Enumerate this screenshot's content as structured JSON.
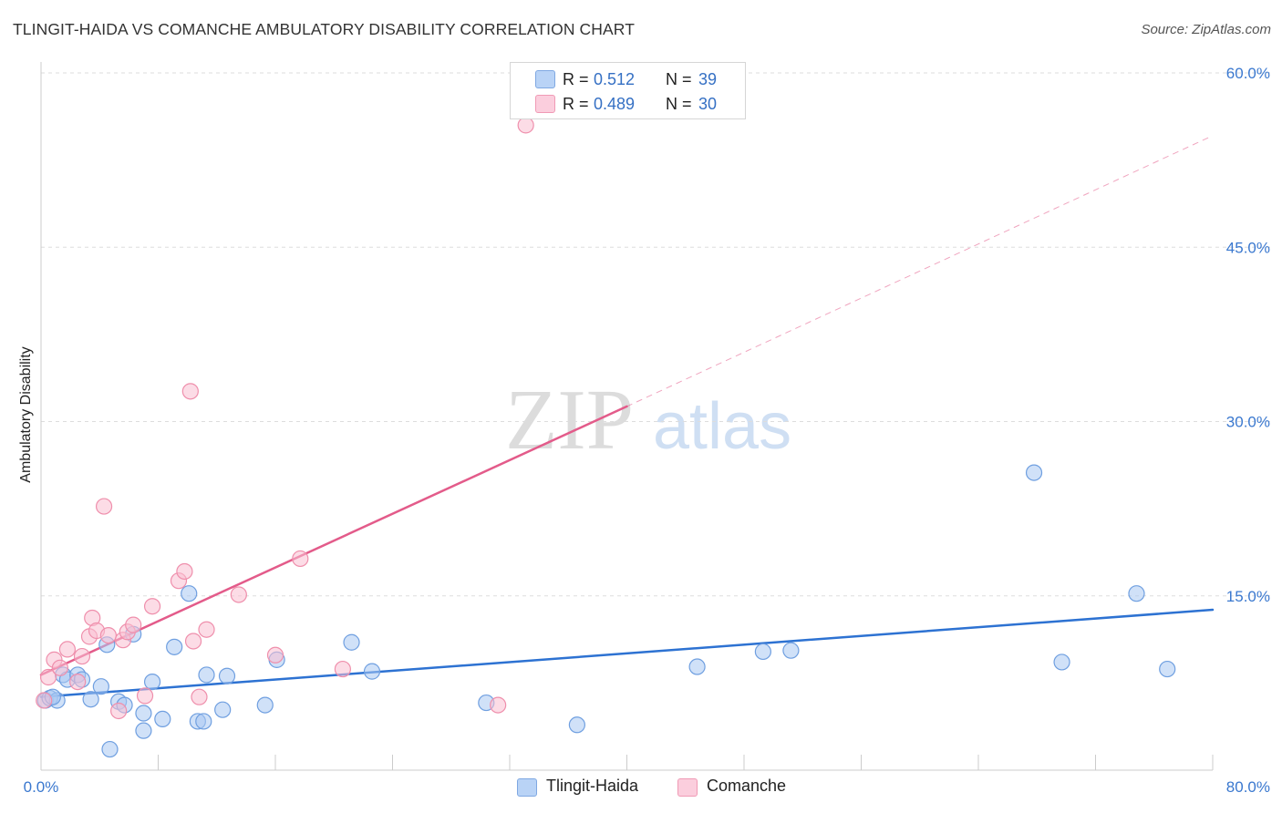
{
  "header": {
    "title": "TLINGIT-HAIDA VS COMANCHE AMBULATORY DISABILITY CORRELATION CHART",
    "source": "Source: ZipAtlas.com"
  },
  "watermark": {
    "zip": "ZIP",
    "atlas": "atlas"
  },
  "legend": {
    "r_label": "R =",
    "n_label": "N =",
    "entries": [
      {
        "r": "0.512",
        "n": "39"
      },
      {
        "r": "0.489",
        "n": "30"
      }
    ]
  },
  "colors": {
    "tlingit_fill": "#a9c8f3",
    "tlingit_stroke": "#6f9fe0",
    "tlingit_line": "#2d72d2",
    "comanche_fill": "#f9c0d2",
    "comanche_stroke": "#ef8fac",
    "comanche_line": "#e35b8a",
    "tick_label": "#3a78cf",
    "grid": "#dddddd"
  },
  "chart_data": {
    "type": "scatter",
    "title": "TLINGIT-HAIDA VS COMANCHE AMBULATORY DISABILITY CORRELATION CHART",
    "xlabel": "",
    "ylabel": "Ambulatory Disability",
    "xlim": [
      0,
      80
    ],
    "ylim": [
      0,
      60
    ],
    "x_tick_labels": [
      "0.0%",
      "80.0%"
    ],
    "y_ticks": [
      15,
      30,
      45,
      60
    ],
    "y_tick_labels": [
      "15.0%",
      "30.0%",
      "45.0%",
      "60.0%"
    ],
    "grid": "horizontal dashed",
    "legend_position": "top-center",
    "series": [
      {
        "name": "Tlingit-Haida",
        "color": "#a9c8f3",
        "points": [
          [
            0.3,
            6.0
          ],
          [
            0.6,
            6.2
          ],
          [
            1.1,
            6.0
          ],
          [
            1.5,
            8.2
          ],
          [
            1.8,
            7.8
          ],
          [
            2.5,
            8.2
          ],
          [
            2.8,
            7.8
          ],
          [
            3.4,
            6.1
          ],
          [
            4.1,
            7.2
          ],
          [
            4.5,
            10.8
          ],
          [
            4.7,
            1.8
          ],
          [
            5.3,
            5.9
          ],
          [
            5.7,
            5.6
          ],
          [
            6.3,
            11.7
          ],
          [
            7.0,
            4.9
          ],
          [
            7.0,
            3.4
          ],
          [
            7.6,
            7.6
          ],
          [
            8.3,
            4.4
          ],
          [
            9.1,
            10.6
          ],
          [
            10.1,
            15.2
          ],
          [
            10.7,
            4.2
          ],
          [
            11.1,
            4.2
          ],
          [
            11.3,
            8.2
          ],
          [
            12.4,
            5.2
          ],
          [
            12.7,
            8.1
          ],
          [
            15.3,
            5.6
          ],
          [
            16.1,
            9.5
          ],
          [
            21.2,
            11.0
          ],
          [
            22.6,
            8.5
          ],
          [
            30.4,
            5.8
          ],
          [
            36.6,
            3.9
          ],
          [
            44.8,
            8.9
          ],
          [
            49.3,
            10.2
          ],
          [
            51.2,
            10.3
          ],
          [
            67.8,
            25.6
          ],
          [
            69.7,
            9.3
          ],
          [
            74.8,
            15.2
          ],
          [
            76.9,
            8.7
          ],
          [
            0.8,
            6.3
          ]
        ]
      },
      {
        "name": "Comanche",
        "color": "#f9c0d2",
        "points": [
          [
            0.2,
            6.0
          ],
          [
            0.5,
            8.0
          ],
          [
            0.9,
            9.5
          ],
          [
            1.3,
            8.8
          ],
          [
            1.8,
            10.4
          ],
          [
            2.5,
            7.6
          ],
          [
            2.8,
            9.8
          ],
          [
            3.3,
            11.5
          ],
          [
            3.5,
            13.1
          ],
          [
            3.8,
            12.0
          ],
          [
            4.3,
            22.7
          ],
          [
            4.6,
            11.6
          ],
          [
            5.3,
            5.1
          ],
          [
            5.6,
            11.2
          ],
          [
            5.9,
            11.9
          ],
          [
            6.3,
            12.5
          ],
          [
            7.1,
            6.4
          ],
          [
            7.6,
            14.1
          ],
          [
            9.4,
            16.3
          ],
          [
            9.8,
            17.1
          ],
          [
            10.2,
            32.6
          ],
          [
            10.4,
            11.1
          ],
          [
            10.8,
            6.3
          ],
          [
            11.3,
            12.1
          ],
          [
            13.5,
            15.1
          ],
          [
            16.0,
            9.9
          ],
          [
            17.7,
            18.2
          ],
          [
            20.6,
            8.7
          ],
          [
            31.2,
            5.6
          ],
          [
            33.1,
            55.5
          ]
        ]
      }
    ],
    "trendlines": [
      {
        "series": "Tlingit-Haida",
        "x": [
          0,
          80
        ],
        "y": [
          6.3,
          13.8
        ],
        "style": "solid"
      },
      {
        "series": "Comanche",
        "x": [
          0,
          40
        ],
        "y": [
          8.2,
          31.3
        ],
        "style": "solid"
      },
      {
        "series": "Comanche",
        "x": [
          40,
          80
        ],
        "y": [
          31.3,
          54.6
        ],
        "style": "dashed"
      }
    ]
  },
  "bottom_legend": [
    {
      "label": "Tlingit-Haida"
    },
    {
      "label": "Comanche"
    }
  ]
}
